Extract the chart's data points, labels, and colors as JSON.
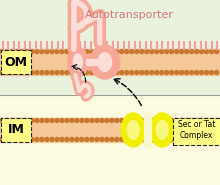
{
  "title": "Autotransporter",
  "om_label": "OM",
  "im_label": "IM",
  "sec_label": "Sec or Tat\nComplex",
  "bg_top_color": "#e8f2dc",
  "bg_bottom_color": "#fefce0",
  "periplasm_color": "#fefce0",
  "om_band_color": "#f5c898",
  "im_band_color": "#f5c898",
  "dot_color": "#c87830",
  "cilia_color": "#f5a0a0",
  "autotransporter_color": "#f5a898",
  "autotransporter_light": "#fcddd8",
  "sec_color": "#f0f000",
  "sec_light": "#f8f880",
  "sec_white": "#f8f8d0",
  "label_bg": "#ffff88",
  "label_edge": "#222222",
  "arrow_color": "#111111",
  "title_color": "#d07878",
  "fig_w": 2.2,
  "fig_h": 1.85,
  "dpi": 100
}
